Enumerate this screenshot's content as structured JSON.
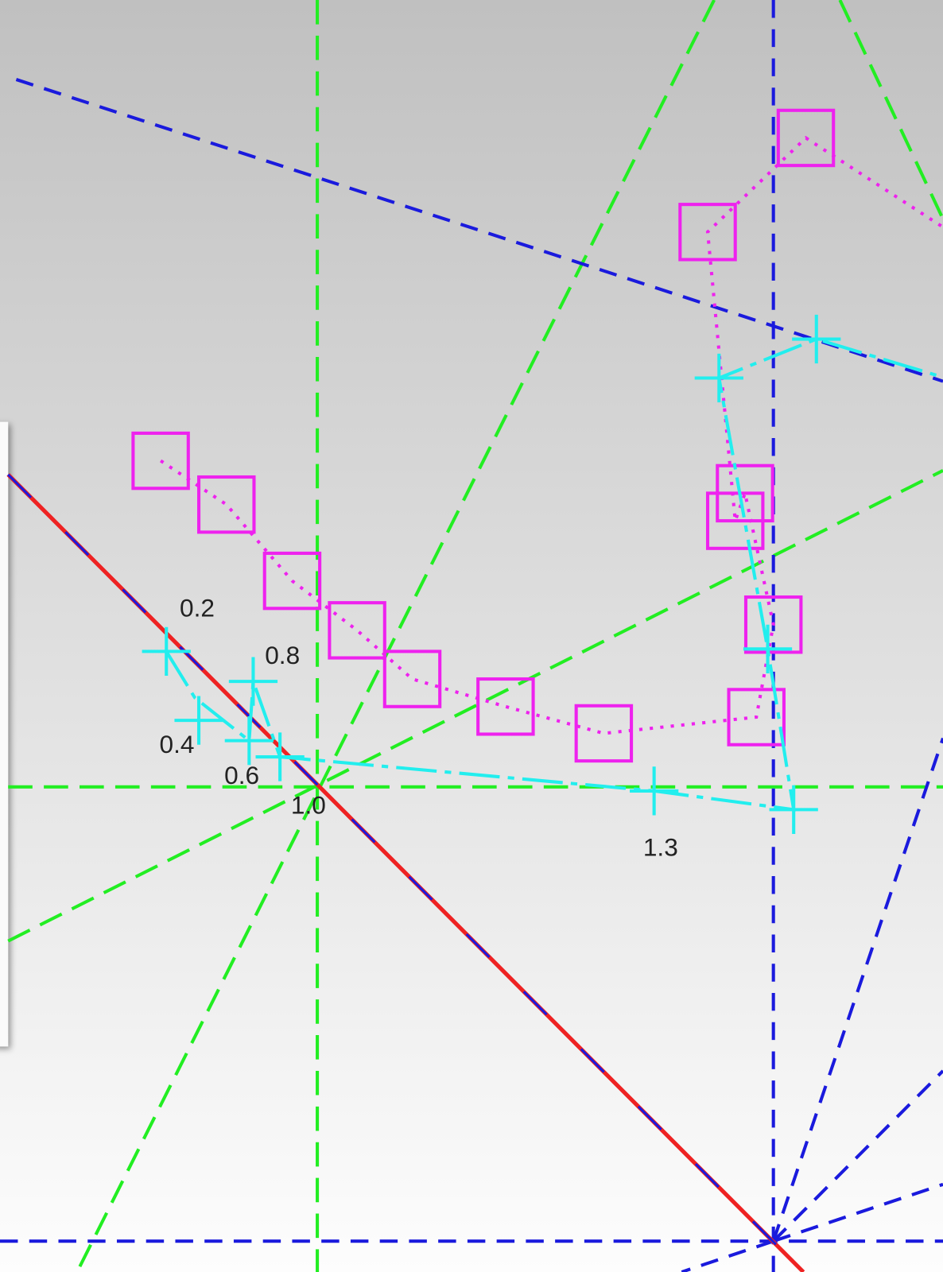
{
  "labels": [
    "0.2",
    "0.8",
    "0.4",
    "0.6",
    "1.0",
    "1.3"
  ]
}
